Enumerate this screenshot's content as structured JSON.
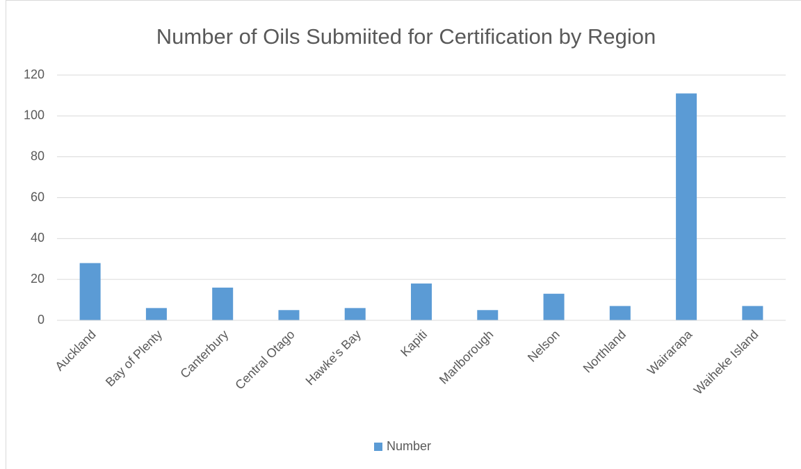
{
  "chart_data": {
    "type": "bar",
    "title": "Number of Oils Submiited for Certification by Region",
    "categories": [
      "Auckland",
      "Bay of Plenty",
      "Canterbury",
      "Central Otago",
      "Hawke's Bay",
      "Kapiti",
      "Marlborough",
      "Nelson",
      "Northland",
      "Wairarapa",
      "Waiheke Island"
    ],
    "series": [
      {
        "name": "Number",
        "color": "#5b9bd5",
        "values": [
          28,
          6,
          16,
          5,
          6,
          18,
          5,
          13,
          7,
          111,
          7
        ]
      }
    ],
    "ylim": [
      0,
      120
    ],
    "yticks": [
      0,
      20,
      40,
      60,
      80,
      100,
      120
    ],
    "grid": true,
    "legend": "bottom"
  }
}
